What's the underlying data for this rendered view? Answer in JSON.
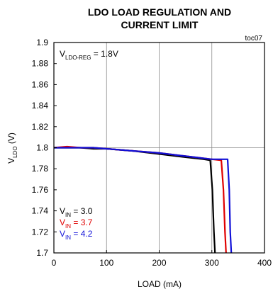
{
  "chart_data": {
    "type": "line",
    "title": [
      "LDO LOAD REGULATION AND",
      "CURRENT LIMIT"
    ],
    "figure_id": "toc07",
    "xlabel": "LOAD (mA)",
    "ylabel": {
      "main": "V",
      "sub": "LDO",
      "unit": " (V)"
    },
    "xlim": [
      0,
      400
    ],
    "ylim": [
      1.7,
      1.9
    ],
    "x_ticks": [
      0,
      100,
      200,
      300,
      400
    ],
    "y_ticks": [
      1.7,
      1.72,
      1.74,
      1.76,
      1.78,
      1.8,
      1.82,
      1.84,
      1.86,
      1.88,
      1.9
    ],
    "y_tick_labels": [
      "1.7",
      "1.72",
      "1.74",
      "1.76",
      "1.78",
      "1.8",
      "1.82",
      "1.84",
      "1.86",
      "1.88",
      "1.9"
    ],
    "grid": "major vertical and horizontal",
    "annotation": {
      "main": "V",
      "sub": "LDO-REG",
      "rest": " = 1.8V"
    },
    "legend_position": "bottom-left",
    "series": [
      {
        "legend": {
          "main": "V",
          "sub": "IN",
          "rest": " = 3.0"
        },
        "color": "#000000",
        "x": [
          0,
          25,
          50,
          75,
          100,
          150,
          200,
          250,
          285,
          297,
          301,
          304,
          306
        ],
        "y": [
          1.8,
          1.8,
          1.8,
          1.799,
          1.799,
          1.797,
          1.794,
          1.791,
          1.789,
          1.788,
          1.76,
          1.72,
          1.7
        ]
      },
      {
        "legend": {
          "main": "V",
          "sub": "IN",
          "rest": " = 3.7"
        },
        "color": "#e00000",
        "x": [
          0,
          25,
          50,
          75,
          100,
          150,
          200,
          250,
          300,
          318,
          322,
          325,
          327
        ],
        "y": [
          1.8,
          1.801,
          1.8,
          1.8,
          1.799,
          1.797,
          1.795,
          1.792,
          1.789,
          1.788,
          1.76,
          1.72,
          1.7
        ]
      },
      {
        "legend": {
          "main": "V",
          "sub": "IN",
          "rest": " = 4.2"
        },
        "color": "#1010d8",
        "x": [
          0,
          25,
          50,
          75,
          100,
          150,
          200,
          250,
          300,
          330,
          333,
          335,
          337
        ],
        "y": [
          1.8,
          1.8,
          1.8,
          1.8,
          1.799,
          1.797,
          1.795,
          1.792,
          1.789,
          1.789,
          1.76,
          1.72,
          1.7
        ]
      }
    ]
  }
}
